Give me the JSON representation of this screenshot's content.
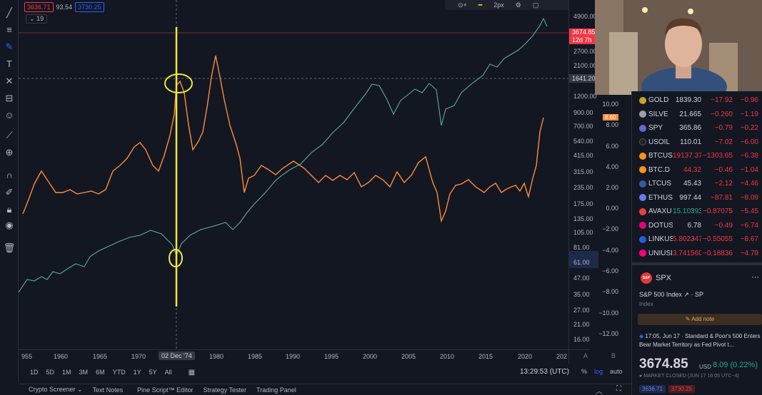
{
  "legend": {
    "price1": "3636.71",
    "mid": "93.54",
    "price2": "3730.25",
    "collapse": "19"
  },
  "top_toolbar": {
    "zoom_label": "2px"
  },
  "price_axis": {
    "labels": [
      "4900.00",
      "2700.00",
      "2100.00",
      "1200.00",
      "900.00",
      "700.00",
      "540.00",
      "415.00",
      "315.00",
      "235.00",
      "175.00",
      "135.00",
      "105.00",
      "81.00",
      "47.00",
      "35.00",
      "27.00",
      "21.00",
      "16.00"
    ],
    "current_price": "3674.85",
    "countdown": "12d 7h",
    "crosshair_price": "1641.20",
    "low_price": "61.00"
  },
  "indicator_axis": {
    "labels": [
      "10.00",
      "8.00",
      "6.00",
      "4.00",
      "2.00",
      "0.00",
      "−2.00",
      "−4.00",
      "−6.00",
      "−8.00",
      "−10.00",
      "−12.00"
    ],
    "current_value": "8.60",
    "icon_a": "A",
    "icon_b": "B"
  },
  "x_axis": {
    "labels": [
      "955",
      "1960",
      "1965",
      "1970",
      "1980",
      "1985",
      "1990",
      "1995",
      "2000",
      "2005",
      "2010",
      "2015",
      "2020",
      "202"
    ],
    "highlight": "02 Dec '74"
  },
  "range_buttons": [
    "1D",
    "5D",
    "1M",
    "3M",
    "6M",
    "YTD",
    "1Y",
    "5Y",
    "All"
  ],
  "clock": "13:29:53 (UTC)",
  "scale": {
    "percent": "%",
    "log": "log",
    "auto": "auto"
  },
  "bottom_tabs": [
    "Crypto Screener",
    "Text Notes",
    "Pine Script™ Editor",
    "Strategy Tester",
    "Trading Panel"
  ],
  "watchlist": [
    {
      "sym": "GOLD",
      "last": "1839.30",
      "chg": "−17.92",
      "pct": "−0.96",
      "color": "#c9a227"
    },
    {
      "sym": "SILVE",
      "last": "21.665",
      "chg": "−0.260",
      "pct": "−1.19",
      "color": "#9aa0a6"
    },
    {
      "sym": "SPY",
      "last": "365.86",
      "chg": "−0.79",
      "pct": "−0.22",
      "color": "#5d6ad8"
    },
    {
      "sym": "USOIL",
      "last": "110.01",
      "chg": "−7.02",
      "pct": "−6.00",
      "color": "#222222"
    },
    {
      "sym": "BTCUS",
      "last": "19137.37",
      "chg": "−1303.65",
      "pct": "−6.38",
      "color": "#f7931a"
    },
    {
      "sym": "BTC.D",
      "last": "44.32",
      "chg": "−0.46",
      "pct": "−1.04",
      "color": "#f7931a"
    },
    {
      "sym": "LTCUS",
      "last": "45.43",
      "chg": "−2.12",
      "pct": "−4.46",
      "color": "#345d9d"
    },
    {
      "sym": "ETHUS",
      "last": "997.44",
      "chg": "−87.81",
      "pct": "−8.09",
      "color": "#627eea"
    },
    {
      "sym": "AVAXU",
      "last": "15.10393",
      "chg": "−0.87075",
      "pct": "−5.45",
      "color": "#e84142"
    },
    {
      "sym": "DOTUS",
      "last": "6.78",
      "chg": "−0.49",
      "pct": "−6.74",
      "color": "#e6007a"
    },
    {
      "sym": "LINKUS",
      "last": "5.802347",
      "chg": "−0.55055",
      "pct": "−8.67",
      "color": "#2a5ada"
    },
    {
      "sym": "UNIUSI",
      "last": "3.741560",
      "chg": "−0.18836",
      "pct": "−4.79",
      "color": "#ff007a"
    }
  ],
  "detail": {
    "logo": "S&P",
    "symbol": "SPX",
    "name": "S&P 500 Index",
    "exchange": "SP",
    "type": "Index",
    "add_note": "Add note",
    "news": "17:05, Jun 17 · Standard & Poor's 500 Enters Bear Market Territory as Fed Pivot t...",
    "price": "3674.85",
    "currency": "USD",
    "change": "8.09 (0.22%)",
    "status": "MARKET CLOSED (JUN 17 16:05 UTC−4)",
    "badge1": "3636.71",
    "badge2": "3730.25"
  },
  "colors": {
    "bg": "#131722",
    "orange": "#ff8c38",
    "teal": "#5fa8a0",
    "highlight": "#f0e640",
    "red": "#f23645",
    "green": "#22ab94"
  }
}
